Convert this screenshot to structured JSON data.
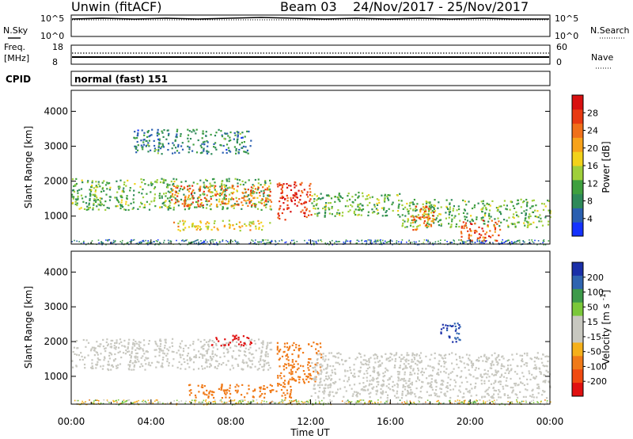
{
  "header": {
    "title": "Unwin (fitACF)",
    "beam": "Beam 03",
    "date_range": "24/Nov/2017 - 25/Nov/2017"
  },
  "panels": {
    "nsky": {
      "left_label": "N.Sky",
      "right_label": "N.Search",
      "left_ticks": [
        "10^5",
        "10^0"
      ],
      "right_ticks": [
        "10^5",
        "10^0"
      ]
    },
    "freq": {
      "left_label": "Freq.",
      "left_units": "[MHz]",
      "left_ticks": [
        "18",
        "8"
      ],
      "right_label": "Nave",
      "right_ticks": [
        "60",
        "0"
      ]
    },
    "cpid": {
      "label": "CPID",
      "value": "normal (fast) 151"
    }
  },
  "colors": {
    "power_scale": [
      "#1432ff",
      "#2a5fb0",
      "#2e8a5a",
      "#3fa03f",
      "#9fcf3a",
      "#f2d21a",
      "#f7a21a",
      "#f0701a",
      "#e83a12",
      "#d81010"
    ],
    "velocity_scale": [
      "#e01010",
      "#f04a10",
      "#f07a18",
      "#f5b01a",
      "#c8c8c0",
      "#c8c8c0",
      "#7bc83a",
      "#3d9a4a",
      "#2f64b0",
      "#1a2fa8"
    ]
  },
  "chart_data": [
    {
      "type": "heatmap",
      "title": "",
      "ylabel": "Slant Range [km]",
      "y_ticks": [
        "1000",
        "2000",
        "3000",
        "4000"
      ],
      "ylim": [
        200,
        4600
      ],
      "colorbar": {
        "label": "Power [dB]",
        "ticks": [
          "4",
          "8",
          "12",
          "16",
          "20",
          "24",
          "28"
        ],
        "range": [
          0,
          32
        ]
      },
      "regions": [
        {
          "t_start": 0.0,
          "t_end": 10.0,
          "r_start": 1200,
          "r_end": 2100,
          "level": 12
        },
        {
          "t_start": 5.0,
          "t_end": 10.0,
          "r_start": 1300,
          "r_end": 1900,
          "level": 24
        },
        {
          "t_start": 10.3,
          "t_end": 12.0,
          "r_start": 900,
          "r_end": 2000,
          "level": 28
        },
        {
          "t_start": 12.0,
          "t_end": 16.5,
          "r_start": 1000,
          "r_end": 1700,
          "level": 12
        },
        {
          "t_start": 16.5,
          "t_end": 24.0,
          "r_start": 700,
          "r_end": 1500,
          "level": 12
        },
        {
          "t_start": 17.0,
          "t_end": 18.3,
          "r_start": 600,
          "r_end": 1300,
          "level": 24
        },
        {
          "t_start": 19.5,
          "t_end": 21.5,
          "r_start": 300,
          "r_end": 900,
          "level": 26
        },
        {
          "t_start": 5.0,
          "t_end": 10.0,
          "r_start": 600,
          "r_end": 900,
          "level": 18
        },
        {
          "t_start": 3.0,
          "t_end": 9.0,
          "r_start": 2800,
          "r_end": 3500,
          "level": 8
        }
      ]
    },
    {
      "type": "heatmap",
      "title": "",
      "ylabel": "Slant Range [km]",
      "xlabel": "Time UT",
      "x_ticks": [
        "00:00",
        "04:00",
        "08:00",
        "12:00",
        "16:00",
        "20:00",
        "00:00"
      ],
      "y_ticks": [
        "1000",
        "2000",
        "3000",
        "4000"
      ],
      "ylim": [
        200,
        4600
      ],
      "colorbar": {
        "label": "Velocity [m s^-1]",
        "ticks": [
          "-200",
          "-100",
          "-50",
          "-15",
          "15",
          "50",
          "100",
          "200"
        ]
      },
      "regions": [
        {
          "t_start": 0.0,
          "t_end": 10.0,
          "r_start": 1200,
          "r_end": 2100,
          "level": 0
        },
        {
          "t_start": 5.8,
          "t_end": 11.0,
          "r_start": 400,
          "r_end": 800,
          "level": -80
        },
        {
          "t_start": 10.3,
          "t_end": 12.5,
          "r_start": 800,
          "r_end": 2000,
          "level": -70
        },
        {
          "t_start": 12.0,
          "t_end": 24.0,
          "r_start": 400,
          "r_end": 1700,
          "level": 0
        },
        {
          "t_start": 7.0,
          "t_end": 9.0,
          "r_start": 1900,
          "r_end": 2200,
          "level": -200
        },
        {
          "t_start": 18.5,
          "t_end": 19.5,
          "r_start": 2000,
          "r_end": 2600,
          "level": 150
        }
      ]
    }
  ]
}
